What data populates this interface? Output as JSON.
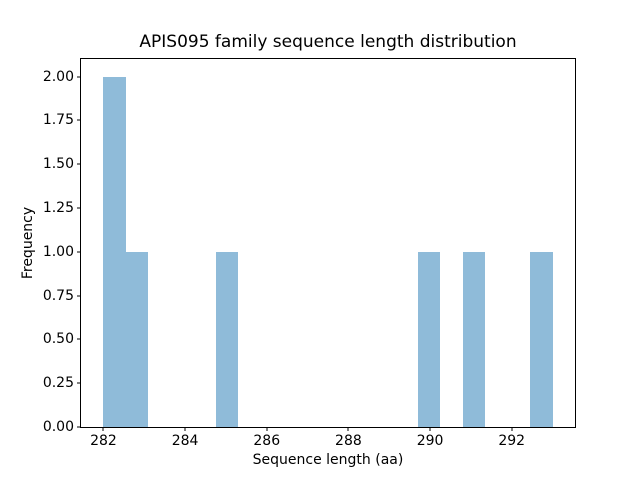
{
  "figure": {
    "background": "#ffffff"
  },
  "chart_data": {
    "type": "bar",
    "subtype": "histogram",
    "title": "APIS095 family sequence length distribution",
    "xlabel": "Sequence length (aa)",
    "ylabel": "Frequency",
    "xlim": [
      281.45,
      293.55
    ],
    "ylim": [
      0,
      2.1
    ],
    "xticks": [
      282,
      284,
      286,
      288,
      290,
      292
    ],
    "yticks": [
      0.0,
      0.25,
      0.5,
      0.75,
      1.0,
      1.25,
      1.5,
      1.75,
      2.0
    ],
    "ytick_labels": [
      "0.00",
      "0.25",
      "0.50",
      "0.75",
      "1.00",
      "1.25",
      "1.50",
      "1.75",
      "2.00"
    ],
    "bin_width": 0.55,
    "bins": [
      {
        "x0": 282.0,
        "x1": 282.55,
        "count": 2
      },
      {
        "x0": 282.55,
        "x1": 283.1,
        "count": 1
      },
      {
        "x0": 284.75,
        "x1": 285.3,
        "count": 1
      },
      {
        "x0": 289.7,
        "x1": 290.25,
        "count": 1
      },
      {
        "x0": 290.8,
        "x1": 291.35,
        "count": 1
      },
      {
        "x0": 292.45,
        "x1": 293.0,
        "count": 1
      }
    ],
    "bar_color": "#8fbbd9",
    "axis_color": "#000000",
    "text_color": "#000000",
    "grid": false,
    "legend": "none"
  }
}
